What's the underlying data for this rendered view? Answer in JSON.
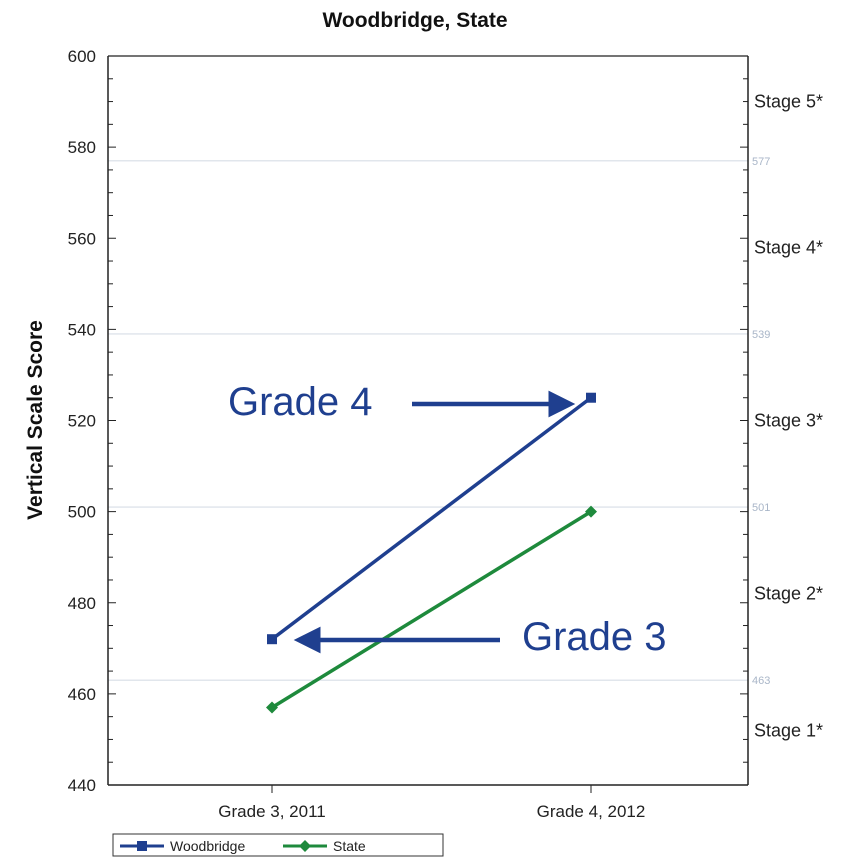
{
  "chart_data": {
    "type": "line",
    "title": "Woodbridge, State",
    "ylabel": "Vertical Scale Score",
    "xlabel": "",
    "ylim": [
      440,
      600
    ],
    "yticks": [
      440,
      460,
      480,
      500,
      520,
      540,
      560,
      580,
      600
    ],
    "categories": [
      "Grade 3, 2011",
      "Grade 4, 2012"
    ],
    "series": [
      {
        "name": "Woodbridge",
        "values": [
          472,
          525
        ],
        "color": "#1f3f8f",
        "marker": "square"
      },
      {
        "name": "State",
        "values": [
          457,
          500
        ],
        "color": "#1e8a3c",
        "marker": "diamond"
      }
    ],
    "cut_scores": [
      {
        "value": 577,
        "label": "577"
      },
      {
        "value": 539,
        "label": "539"
      },
      {
        "value": 501,
        "label": "501"
      },
      {
        "value": 463,
        "label": "463"
      }
    ],
    "stages": [
      {
        "label": "Stage 5*",
        "value": 590
      },
      {
        "label": "Stage 4*",
        "value": 558
      },
      {
        "label": "Stage 3*",
        "value": 520
      },
      {
        "label": "Stage 2*",
        "value": 482
      },
      {
        "label": "Stage 1*",
        "value": 452
      }
    ],
    "annotations": [
      {
        "text": "Grade 4",
        "points_to": "Woodbridge, Grade 4, 2012"
      },
      {
        "text": "Grade 3",
        "points_to": "Woodbridge, Grade 3, 2011"
      }
    ],
    "legend_position": "bottom-left",
    "grid": "horizontal cut-score lines"
  },
  "colors": {
    "axis": "#222222",
    "grid": "#d7dde6",
    "annotation": "#1f3f8f"
  }
}
